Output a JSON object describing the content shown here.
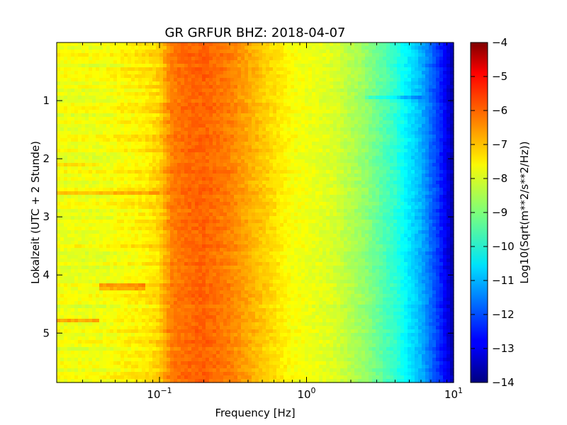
{
  "chart_data": {
    "type": "heatmap",
    "title": "GR GRFUR BHZ: 2018-04-07",
    "xlabel": "Frequency [Hz]",
    "ylabel": "Lokalzeit (UTC + 2 Stunde)",
    "xscale": "log",
    "xlim": [
      0.02,
      10
    ],
    "ylim": [
      5.85,
      0
    ],
    "x_major_ticks": [
      0.1,
      1,
      10
    ],
    "x_tick_labels": [
      {
        "base": "10",
        "exp": "−1"
      },
      {
        "base": "10",
        "exp": "0"
      },
      {
        "base": "10",
        "exp": "1"
      }
    ],
    "y_ticks": [
      1,
      2,
      3,
      4,
      5
    ],
    "y_tick_labels": [
      "1",
      "2",
      "3",
      "4",
      "5"
    ],
    "colorbar": {
      "label": "Log10(Sqrt(m**2/s**2/Hz))",
      "range": [
        -14,
        -4
      ],
      "ticks": [
        -4,
        -5,
        -6,
        -7,
        -8,
        -9,
        -10,
        -11,
        -12,
        -13,
        -14
      ],
      "tick_labels": [
        "−4",
        "−5",
        "−6",
        "−7",
        "−8",
        "−9",
        "−10",
        "−11",
        "−12",
        "−13",
        "−14"
      ],
      "colormap": "jet"
    },
    "spectrum_profile": {
      "freq_hz": [
        0.02,
        0.04,
        0.06,
        0.08,
        0.1,
        0.12,
        0.15,
        0.2,
        0.3,
        0.5,
        0.8,
        1.0,
        1.5,
        2.5,
        4,
        6,
        8,
        10
      ],
      "log10_amplitude": [
        -7.9,
        -7.9,
        -7.7,
        -7.6,
        -7.3,
        -6.5,
        -6.3,
        -6.2,
        -6.5,
        -7.2,
        -7.8,
        -7.9,
        -8.1,
        -8.8,
        -9.8,
        -11.0,
        -12.3,
        -13.6
      ]
    },
    "anomalies": [
      {
        "time_h": 0.95,
        "from_hz": 2.5,
        "to_hz": 6,
        "delta": -0.6
      },
      {
        "time_h": 4.2,
        "from_hz": 0.04,
        "to_hz": 0.08,
        "delta": 0.9
      },
      {
        "time_h": 4.8,
        "from_hz": 0.02,
        "to_hz": 0.04,
        "delta": 0.9
      },
      {
        "time_h": 2.6,
        "from_hz": 0.02,
        "to_hz": 0.1,
        "delta": 0.6
      },
      {
        "time_h": 2.1,
        "from_hz": 0.02,
        "to_hz": 0.04,
        "delta": 0.5
      }
    ]
  }
}
